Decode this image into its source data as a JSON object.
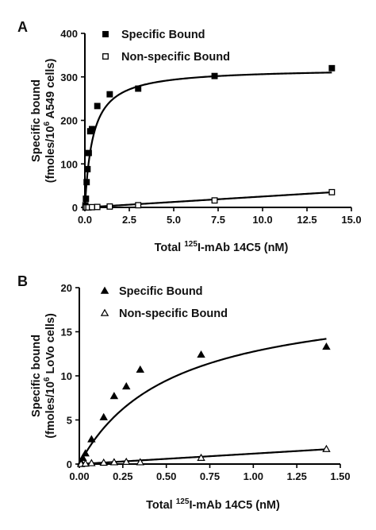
{
  "chart_data": [
    {
      "panel": "A",
      "type": "scatter",
      "xlabel_prefix": "Total ",
      "xlabel_sup": "125",
      "xlabel_suffix": "I-mAb 14C5 (nM)",
      "ylabel_line1": "Specific bound",
      "ylabel_line2_prefix": "(fmoles/10",
      "ylabel_line2_sup": "6",
      "ylabel_line2_suffix": " A549 cells)",
      "xlim": [
        0,
        15
      ],
      "ylim": [
        0,
        400
      ],
      "xticks": [
        0,
        2.5,
        5,
        7.5,
        10,
        12.5,
        15
      ],
      "xtick_labels": [
        "0.0",
        "2.5",
        "5.0",
        "7.5",
        "10.0",
        "12.5",
        "15.0"
      ],
      "yticks": [
        0,
        100,
        200,
        300,
        400
      ],
      "ytick_labels": [
        "0",
        "100",
        "200",
        "300",
        "400"
      ],
      "legend_position": "top-left",
      "series": [
        {
          "name": "Specific Bound",
          "marker": "filled-square",
          "points": [
            [
              0.03,
              5
            ],
            [
              0.06,
              20
            ],
            [
              0.1,
              58
            ],
            [
              0.15,
              88
            ],
            [
              0.22,
              125
            ],
            [
              0.3,
              175
            ],
            [
              0.4,
              180
            ],
            [
              0.7,
              233
            ],
            [
              1.4,
              260
            ],
            [
              3.0,
              273
            ],
            [
              7.3,
              302
            ],
            [
              13.9,
              320
            ]
          ],
          "fit": {
            "model": "saturation",
            "bmax": 320,
            "kd": 0.45
          }
        },
        {
          "name": "Non-specific Bound",
          "marker": "open-square",
          "points": [
            [
              0.03,
              0
            ],
            [
              0.1,
              0
            ],
            [
              0.2,
              0
            ],
            [
              0.4,
              0.5
            ],
            [
              0.7,
              1
            ],
            [
              1.4,
              2
            ],
            [
              3.0,
              5
            ],
            [
              7.3,
              16
            ],
            [
              13.9,
              35
            ]
          ],
          "fit": {
            "model": "linear",
            "slope": 2.5,
            "intercept": 0
          }
        }
      ]
    },
    {
      "panel": "B",
      "type": "scatter",
      "xlabel_prefix": "Total ",
      "xlabel_sup": "125",
      "xlabel_suffix": "I-mAb 14C5 (nM)",
      "ylabel_line1": "Specific bound",
      "ylabel_line2_prefix": "(fmoles/10",
      "ylabel_line2_sup": "6",
      "ylabel_line2_suffix": " LoVo cells)",
      "xlim": [
        0,
        1.5
      ],
      "ylim": [
        0,
        20
      ],
      "xticks": [
        0,
        0.25,
        0.5,
        0.75,
        1.0,
        1.25,
        1.5
      ],
      "xtick_labels": [
        "0.00",
        "0.25",
        "0.50",
        "0.75",
        "1.00",
        "1.25",
        "1.50"
      ],
      "yticks": [
        0,
        5,
        10,
        15,
        20
      ],
      "ytick_labels": [
        "0",
        "5",
        "10",
        "15",
        "20"
      ],
      "legend_position": "top-left",
      "series": [
        {
          "name": "Specific Bound",
          "marker": "filled-triangle",
          "points": [
            [
              0.01,
              0.2
            ],
            [
              0.02,
              0.7
            ],
            [
              0.035,
              1.2
            ],
            [
              0.07,
              2.8
            ],
            [
              0.14,
              5.3
            ],
            [
              0.2,
              7.7
            ],
            [
              0.27,
              8.8
            ],
            [
              0.35,
              10.7
            ],
            [
              0.7,
              12.4
            ],
            [
              1.42,
              13.3
            ]
          ],
          "fit": {
            "model": "saturation",
            "bmax": 19.5,
            "kd": 0.53
          }
        },
        {
          "name": "Non-specific Bound",
          "marker": "open-triangle",
          "points": [
            [
              0.01,
              0
            ],
            [
              0.035,
              0.05
            ],
            [
              0.07,
              0.1
            ],
            [
              0.14,
              0.15
            ],
            [
              0.2,
              0.2
            ],
            [
              0.27,
              0.25
            ],
            [
              0.35,
              0.2
            ],
            [
              0.7,
              0.7
            ],
            [
              1.42,
              1.7
            ]
          ],
          "fit": {
            "model": "linear",
            "slope": 1.18,
            "intercept": 0
          }
        }
      ]
    }
  ]
}
